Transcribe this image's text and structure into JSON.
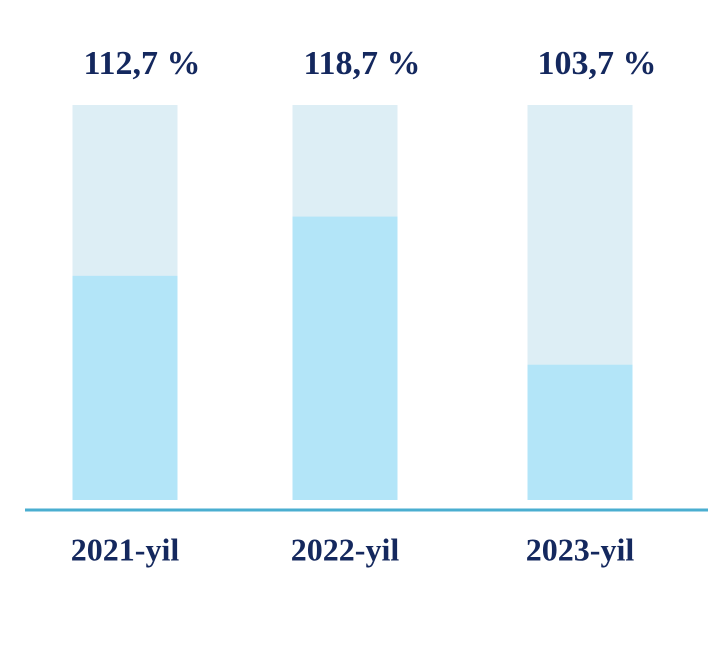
{
  "chart_data": {
    "type": "bar",
    "categories": [
      "2021-yil",
      "2022-yil",
      "2023-yil"
    ],
    "values": [
      112.7,
      118.7,
      103.7
    ],
    "value_labels": [
      "112,7 %",
      "118,7 %",
      "103,7 %"
    ],
    "color": "#b3e5f8",
    "ylim": [
      90,
      130
    ]
  }
}
